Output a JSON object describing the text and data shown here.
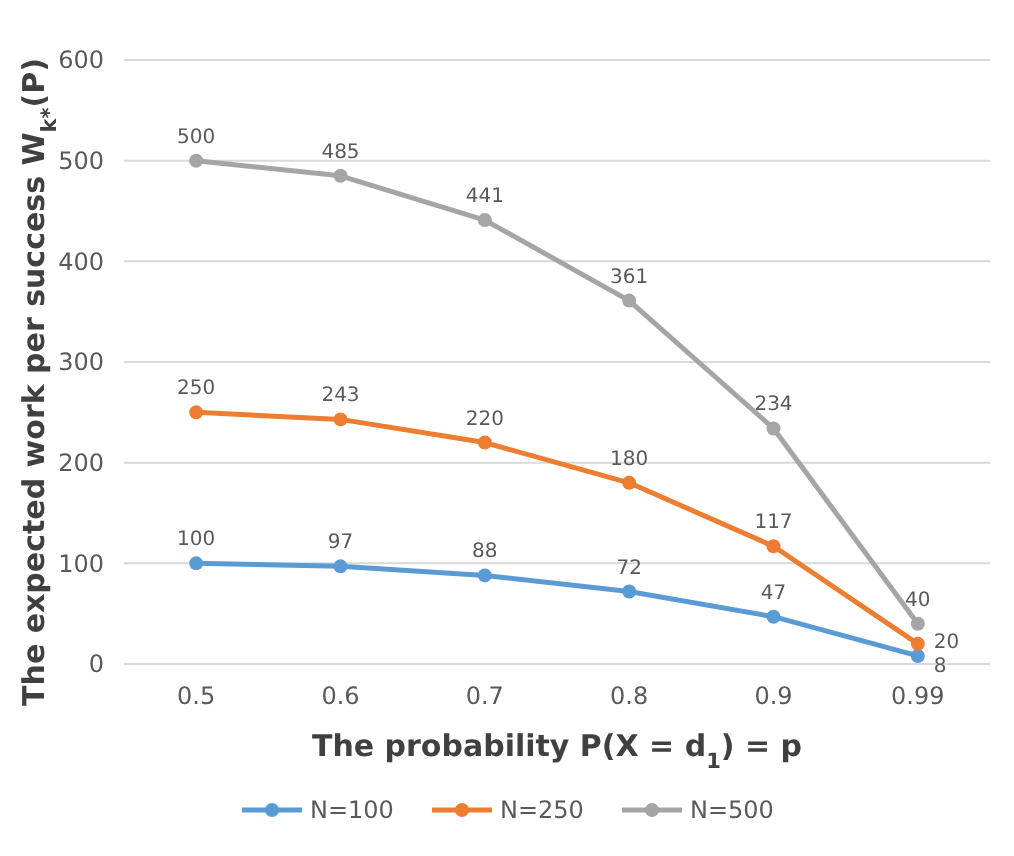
{
  "chart_data": {
    "type": "line",
    "xlabel": "The probability P(X = d$_{1}$) = p",
    "ylabel": "The expected work per success W$_{k*}$(P)",
    "categories": [
      "0.5",
      "0.6",
      "0.7",
      "0.8",
      "0.9",
      "0.99"
    ],
    "series": [
      {
        "name": "N=100",
        "color": "#5b9bd5",
        "values": [
          100,
          97,
          88,
          72,
          47,
          8
        ]
      },
      {
        "name": "N=250",
        "color": "#ed7d31",
        "values": [
          250,
          243,
          220,
          180,
          117,
          20
        ]
      },
      {
        "name": "N=500",
        "color": "#a5a5a5",
        "values": [
          500,
          485,
          441,
          361,
          234,
          40
        ]
      }
    ],
    "ylim": [
      0,
      600
    ],
    "yticks": [
      0,
      100,
      200,
      300,
      400,
      500,
      600
    ],
    "grid": "y",
    "legend": "bottom",
    "marker": "circle",
    "line_style": "solid",
    "data_labels": true
  }
}
